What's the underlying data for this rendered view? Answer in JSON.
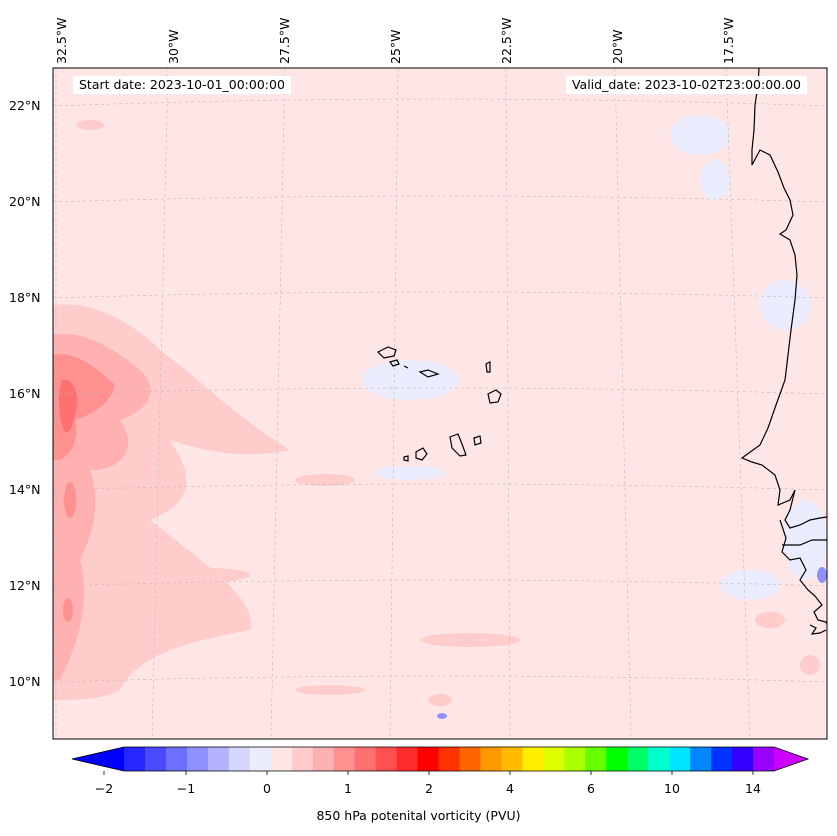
{
  "map": {
    "start_date": "Start date: 2023-10-01_00:00:00",
    "valid_date": "Valid_date: 2023-10-02T23:00:00.00",
    "lon_ticks": [
      "32.5°W",
      "30°W",
      "27.5°W",
      "25°W",
      "22.5°W",
      "20°W",
      "17.5°W"
    ],
    "lat_ticks": [
      "22°N",
      "20°N",
      "18°N",
      "16°N",
      "14°N",
      "12°N",
      "10°N"
    ],
    "background_color": "#ffe6e6"
  },
  "colorbar": {
    "title": "850 hPa potenital vorticity (PVU)",
    "tick_labels": [
      "−2",
      "−1",
      "0",
      "1",
      "2",
      "4",
      "6",
      "10",
      "14"
    ],
    "under_color": "#0000ff",
    "over_color": "#cc00ff",
    "colors": [
      "#2626ff",
      "#4a4aff",
      "#6e6eff",
      "#9090ff",
      "#b3b3ff",
      "#d6d6ff",
      "#ececff",
      "#ffe6e6",
      "#ffcccc",
      "#ffb0b0",
      "#ff9090",
      "#ff7070",
      "#ff5050",
      "#ff2b2b",
      "#ff0000",
      "#ff3300",
      "#ff6600",
      "#ff9900",
      "#ffbb00",
      "#ffee00",
      "#ddff00",
      "#aaff00",
      "#66ff00",
      "#00ff00",
      "#00ff66",
      "#00ffcc",
      "#00e5ff",
      "#0088ff",
      "#0033ff",
      "#3300ff",
      "#9900ff"
    ]
  }
}
